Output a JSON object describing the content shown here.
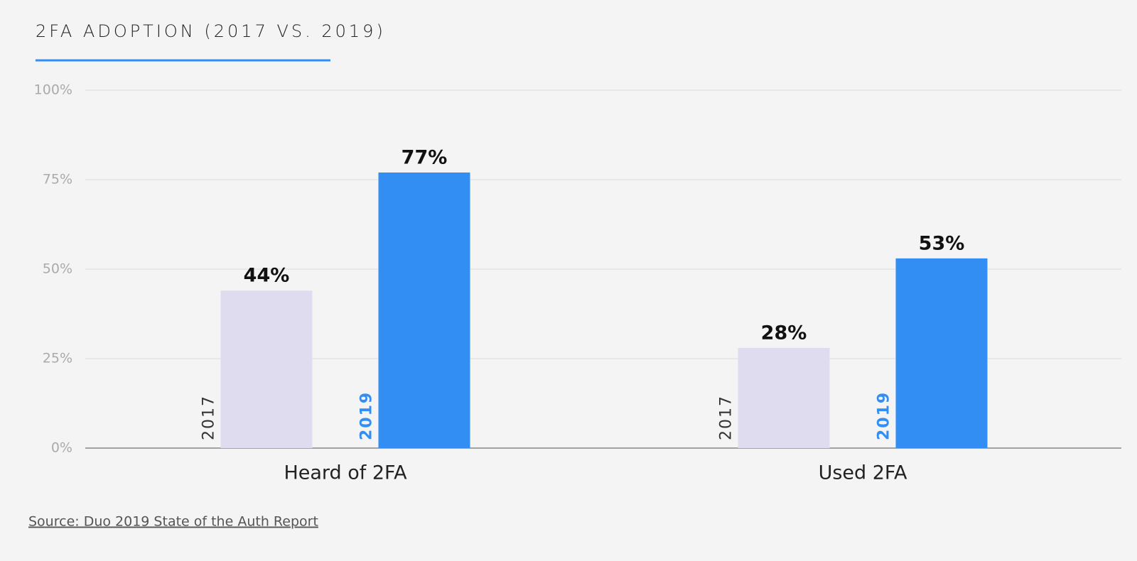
{
  "chart_data": {
    "type": "bar",
    "title": "2FA ADOPTION (2017 VS. 2019)",
    "categories": [
      "Heard of 2FA",
      "Used 2FA"
    ],
    "series": [
      {
        "name": "2017",
        "color": "#e0dcef",
        "values": [
          44,
          28
        ],
        "value_labels": [
          "44%",
          "28%"
        ]
      },
      {
        "name": "2019",
        "color": "#338ef4",
        "values": [
          77,
          53
        ],
        "value_labels": [
          "77%",
          "53%"
        ]
      }
    ],
    "ylim": [
      0,
      100
    ],
    "yticks": [
      {
        "value": 0,
        "label": "0%"
      },
      {
        "value": 25,
        "label": "25%"
      },
      {
        "value": 50,
        "label": "50%"
      },
      {
        "value": 75,
        "label": "75%"
      },
      {
        "value": 100,
        "label": "100%"
      }
    ],
    "grid": true,
    "source": "Source: Duo 2019 State of the Auth Report"
  }
}
